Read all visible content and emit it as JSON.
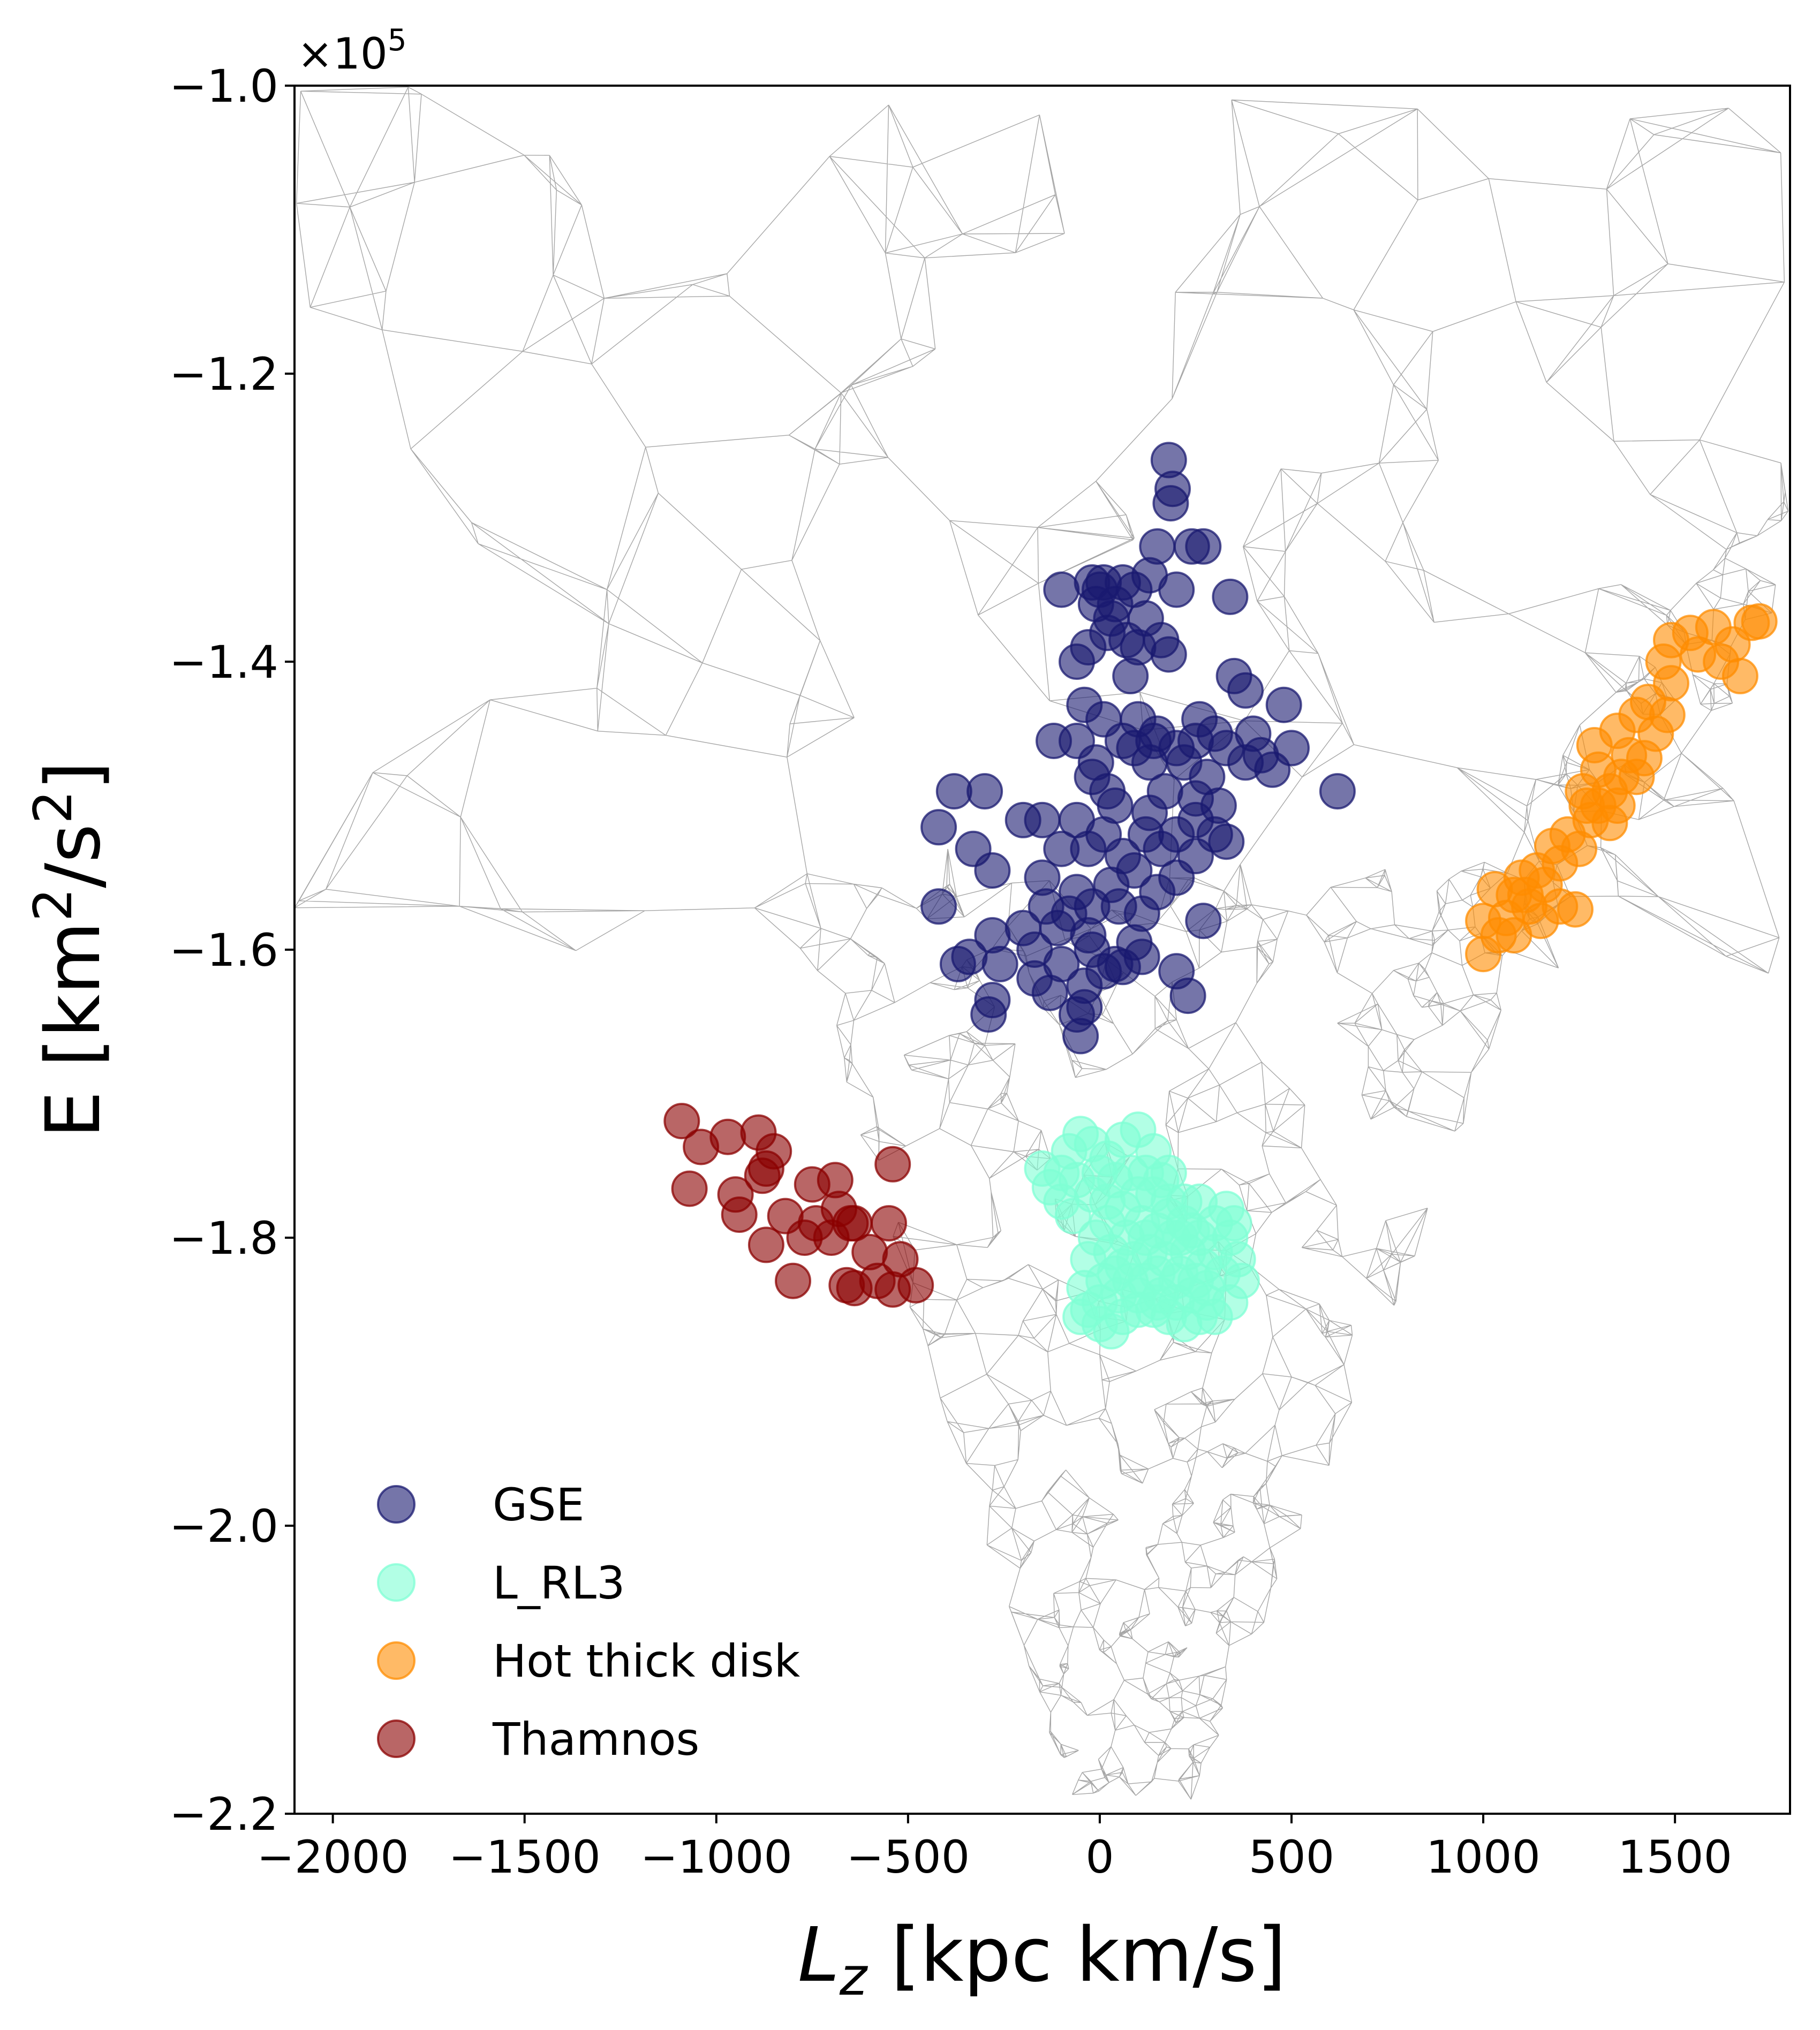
{
  "chart_data": {
    "type": "scatter",
    "title": "",
    "xlabel_main": "L",
    "xlabel_sub": "z",
    "xlabel_rest": " [kpc km/s]",
    "ylabel_main": "E [km",
    "ylabel_sup": "2",
    "ylabel_mid": "/s",
    "ylabel_sup2": "2",
    "ylabel_end": "]",
    "offset_text": "×10",
    "offset_exp": "5",
    "xlim": [
      -2100,
      1800
    ],
    "ylim": [
      -2.2,
      -1.0
    ],
    "xticks": [
      -2000,
      -1500,
      -1000,
      -500,
      0,
      500,
      1000,
      1500
    ],
    "xtick_labels": [
      "−2000",
      "−1500",
      "−1000",
      "−500",
      "0",
      "500",
      "1000",
      "1500"
    ],
    "yticks": [
      -2.2,
      -2.0,
      -1.8,
      -1.6,
      -1.4,
      -1.2,
      -1.0
    ],
    "ytick_labels": [
      "−2.2",
      "−2.0",
      "−1.8",
      "−1.6",
      "−1.4",
      "−1.2",
      "−1.0"
    ],
    "grid": false,
    "legend_position": "bottom-left",
    "series": [
      {
        "name": "GSE",
        "color": "#191970",
        "alpha": 0.6,
        "points": [
          [
            180,
            -1.26
          ],
          [
            190,
            -1.28
          ],
          [
            185,
            -1.29
          ],
          [
            270,
            -1.32
          ],
          [
            240,
            -1.32
          ],
          [
            150,
            -1.32
          ],
          [
            130,
            -1.34
          ],
          [
            -100,
            -1.35
          ],
          [
            -20,
            -1.345
          ],
          [
            10,
            -1.345
          ],
          [
            60,
            -1.345
          ],
          [
            90,
            -1.35
          ],
          [
            200,
            -1.35
          ],
          [
            340,
            -1.355
          ],
          [
            -10,
            -1.36
          ],
          [
            40,
            -1.36
          ],
          [
            120,
            -1.37
          ],
          [
            20,
            -1.38
          ],
          [
            70,
            -1.385
          ],
          [
            160,
            -1.385
          ],
          [
            -30,
            -1.39
          ],
          [
            100,
            -1.39
          ],
          [
            180,
            -1.395
          ],
          [
            -60,
            -1.4
          ],
          [
            350,
            -1.41
          ],
          [
            380,
            -1.42
          ],
          [
            480,
            -1.43
          ],
          [
            -40,
            -1.43
          ],
          [
            10,
            -1.44
          ],
          [
            100,
            -1.44
          ],
          [
            150,
            -1.45
          ],
          [
            200,
            -1.46
          ],
          [
            250,
            -1.455
          ],
          [
            300,
            -1.45
          ],
          [
            330,
            -1.46
          ],
          [
            420,
            -1.465
          ],
          [
            500,
            -1.46
          ],
          [
            -120,
            -1.455
          ],
          [
            -60,
            -1.455
          ],
          [
            60,
            -1.455
          ],
          [
            90,
            -1.46
          ],
          [
            130,
            -1.47
          ],
          [
            220,
            -1.47
          ],
          [
            280,
            -1.48
          ],
          [
            380,
            -1.47
          ],
          [
            450,
            -1.475
          ],
          [
            -20,
            -1.48
          ],
          [
            20,
            -1.49
          ],
          [
            170,
            -1.49
          ],
          [
            250,
            -1.495
          ],
          [
            310,
            -1.5
          ],
          [
            620,
            -1.49
          ],
          [
            -380,
            -1.49
          ],
          [
            -300,
            -1.49
          ],
          [
            -150,
            -1.51
          ],
          [
            -60,
            -1.51
          ],
          [
            10,
            -1.52
          ],
          [
            120,
            -1.52
          ],
          [
            200,
            -1.52
          ],
          [
            300,
            -1.52
          ],
          [
            -420,
            -1.515
          ],
          [
            -200,
            -1.51
          ],
          [
            -100,
            -1.53
          ],
          [
            -30,
            -1.53
          ],
          [
            60,
            -1.535
          ],
          [
            160,
            -1.53
          ],
          [
            250,
            -1.535
          ],
          [
            330,
            -1.525
          ],
          [
            -330,
            -1.53
          ],
          [
            -280,
            -1.545
          ],
          [
            -150,
            -1.55
          ],
          [
            -60,
            -1.56
          ],
          [
            30,
            -1.555
          ],
          [
            90,
            -1.545
          ],
          [
            200,
            -1.55
          ],
          [
            -20,
            -1.57
          ],
          [
            -80,
            -1.575
          ],
          [
            110,
            -1.575
          ],
          [
            -420,
            -1.57
          ],
          [
            -110,
            -1.585
          ],
          [
            -30,
            -1.59
          ],
          [
            90,
            -1.595
          ],
          [
            270,
            -1.58
          ],
          [
            -280,
            -1.59
          ],
          [
            -170,
            -1.6
          ],
          [
            -340,
            -1.605
          ],
          [
            -370,
            -1.61
          ],
          [
            -260,
            -1.61
          ],
          [
            -170,
            -1.62
          ],
          [
            -100,
            -1.61
          ],
          [
            10,
            -1.615
          ],
          [
            60,
            -1.612
          ],
          [
            110,
            -1.605
          ],
          [
            200,
            -1.615
          ],
          [
            -40,
            -1.625
          ],
          [
            -130,
            -1.63
          ],
          [
            -280,
            -1.635
          ],
          [
            -40,
            -1.64
          ],
          [
            -60,
            -1.645
          ],
          [
            -290,
            -1.645
          ],
          [
            230,
            -1.632
          ],
          [
            -50,
            -1.66
          ],
          [
            40,
            -1.61
          ],
          [
            0,
            -1.35
          ],
          [
            30,
            -1.37
          ],
          [
            80,
            -1.41
          ],
          [
            -10,
            -1.47
          ],
          [
            40,
            -1.5
          ],
          [
            130,
            -1.505
          ],
          [
            250,
            -1.51
          ],
          [
            150,
            -1.56
          ],
          [
            50,
            -1.57
          ],
          [
            -20,
            -1.6
          ],
          [
            -140,
            -1.57
          ],
          [
            -200,
            -1.585
          ],
          [
            140,
            -1.455
          ],
          [
            260,
            -1.44
          ],
          [
            400,
            -1.45
          ]
        ]
      },
      {
        "name": "L_RL3",
        "color": "#7fffd4",
        "alpha": 0.6,
        "points": [
          [
            -130,
            -1.765
          ],
          [
            -150,
            -1.752
          ],
          [
            -100,
            -1.775
          ],
          [
            -80,
            -1.74
          ],
          [
            -50,
            -1.728
          ],
          [
            -20,
            -1.735
          ],
          [
            20,
            -1.745
          ],
          [
            60,
            -1.732
          ],
          [
            100,
            -1.725
          ],
          [
            140,
            -1.74
          ],
          [
            180,
            -1.755
          ],
          [
            220,
            -1.775
          ],
          [
            260,
            -1.775
          ],
          [
            300,
            -1.79
          ],
          [
            340,
            -1.8
          ],
          [
            360,
            -1.815
          ],
          [
            370,
            -1.83
          ],
          [
            340,
            -1.845
          ],
          [
            300,
            -1.855
          ],
          [
            260,
            -1.855
          ],
          [
            220,
            -1.86
          ],
          [
            180,
            -1.855
          ],
          [
            140,
            -1.85
          ],
          [
            100,
            -1.85
          ],
          [
            60,
            -1.855
          ],
          [
            30,
            -1.865
          ],
          [
            0,
            -1.86
          ],
          [
            -30,
            -1.85
          ],
          [
            -40,
            -1.835
          ],
          [
            -30,
            -1.815
          ],
          [
            -10,
            -1.8
          ],
          [
            20,
            -1.79
          ],
          [
            60,
            -1.78
          ],
          [
            100,
            -1.77
          ],
          [
            140,
            -1.77
          ],
          [
            180,
            -1.775
          ],
          [
            220,
            -1.79
          ],
          [
            260,
            -1.8
          ],
          [
            300,
            -1.81
          ],
          [
            320,
            -1.825
          ],
          [
            280,
            -1.835
          ],
          [
            240,
            -1.84
          ],
          [
            200,
            -1.845
          ],
          [
            160,
            -1.84
          ],
          [
            120,
            -1.83
          ],
          [
            80,
            -1.83
          ],
          [
            40,
            -1.825
          ],
          [
            10,
            -1.83
          ],
          [
            30,
            -1.81
          ],
          [
            70,
            -1.8
          ],
          [
            110,
            -1.79
          ],
          [
            150,
            -1.795
          ],
          [
            190,
            -1.8
          ],
          [
            230,
            -1.81
          ],
          [
            270,
            -1.82
          ],
          [
            250,
            -1.83
          ],
          [
            210,
            -1.825
          ],
          [
            170,
            -1.815
          ],
          [
            130,
            -1.81
          ],
          [
            90,
            -1.815
          ],
          [
            50,
            -1.84
          ],
          [
            100,
            -1.84
          ],
          [
            150,
            -1.825
          ],
          [
            200,
            -1.83
          ],
          [
            240,
            -1.795
          ],
          [
            180,
            -1.785
          ],
          [
            120,
            -1.8
          ],
          [
            60,
            -1.82
          ],
          [
            -60,
            -1.76
          ],
          [
            -100,
            -1.755
          ],
          [
            0,
            -1.755
          ],
          [
            40,
            -1.76
          ],
          [
            80,
            -1.755
          ],
          [
            120,
            -1.755
          ],
          [
            160,
            -1.76
          ],
          [
            -20,
            -1.77
          ],
          [
            20,
            -1.775
          ],
          [
            -70,
            -1.785
          ],
          [
            330,
            -1.78
          ],
          [
            350,
            -1.79
          ],
          [
            0,
            -1.845
          ],
          [
            -50,
            -1.855
          ],
          [
            280,
            -1.845
          ],
          [
            210,
            -1.8
          ],
          [
            150,
            -1.845
          ]
        ]
      },
      {
        "name": "Hot thick disk",
        "color": "#ff8c00",
        "alpha": 0.6,
        "points": [
          [
            1720,
            -1.372
          ],
          [
            1700,
            -1.373
          ],
          [
            1600,
            -1.376
          ],
          [
            1540,
            -1.38
          ],
          [
            1650,
            -1.388
          ],
          [
            1560,
            -1.395
          ],
          [
            1490,
            -1.385
          ],
          [
            1470,
            -1.4
          ],
          [
            1620,
            -1.4
          ],
          [
            1670,
            -1.41
          ],
          [
            1490,
            -1.415
          ],
          [
            1430,
            -1.428
          ],
          [
            1400,
            -1.437
          ],
          [
            1480,
            -1.437
          ],
          [
            1350,
            -1.448
          ],
          [
            1450,
            -1.45
          ],
          [
            1290,
            -1.458
          ],
          [
            1380,
            -1.465
          ],
          [
            1420,
            -1.467
          ],
          [
            1300,
            -1.475
          ],
          [
            1360,
            -1.48
          ],
          [
            1400,
            -1.48
          ],
          [
            1330,
            -1.49
          ],
          [
            1260,
            -1.49
          ],
          [
            1300,
            -1.5
          ],
          [
            1350,
            -1.5
          ],
          [
            1280,
            -1.51
          ],
          [
            1330,
            -1.512
          ],
          [
            1220,
            -1.52
          ],
          [
            1250,
            -1.53
          ],
          [
            1180,
            -1.528
          ],
          [
            1200,
            -1.54
          ],
          [
            1140,
            -1.545
          ],
          [
            1100,
            -1.55
          ],
          [
            1160,
            -1.555
          ],
          [
            1030,
            -1.558
          ],
          [
            1080,
            -1.562
          ],
          [
            1120,
            -1.57
          ],
          [
            1200,
            -1.57
          ],
          [
            1060,
            -1.578
          ],
          [
            1000,
            -1.58
          ],
          [
            1150,
            -1.58
          ],
          [
            1240,
            -1.572
          ],
          [
            1040,
            -1.59
          ],
          [
            1080,
            -1.59
          ],
          [
            1000,
            -1.603
          ],
          [
            1110,
            -1.562
          ],
          [
            1270,
            -1.5
          ]
        ]
      },
      {
        "name": "Thamnos",
        "color": "#8b0000",
        "alpha": 0.6,
        "points": [
          [
            -1090,
            -1.719
          ],
          [
            -1040,
            -1.737
          ],
          [
            -970,
            -1.73
          ],
          [
            -890,
            -1.727
          ],
          [
            -850,
            -1.74
          ],
          [
            -1070,
            -1.766
          ],
          [
            -950,
            -1.77
          ],
          [
            -870,
            -1.752
          ],
          [
            -880,
            -1.757
          ],
          [
            -750,
            -1.763
          ],
          [
            -690,
            -1.76
          ],
          [
            -540,
            -1.749
          ],
          [
            -940,
            -1.784
          ],
          [
            -820,
            -1.785
          ],
          [
            -740,
            -1.79
          ],
          [
            -680,
            -1.78
          ],
          [
            -650,
            -1.79
          ],
          [
            -770,
            -1.8
          ],
          [
            -700,
            -1.8
          ],
          [
            -640,
            -1.79
          ],
          [
            -550,
            -1.79
          ],
          [
            -870,
            -1.805
          ],
          [
            -600,
            -1.81
          ],
          [
            -520,
            -1.815
          ],
          [
            -800,
            -1.83
          ],
          [
            -580,
            -1.83
          ],
          [
            -660,
            -1.833
          ],
          [
            -640,
            -1.835
          ],
          [
            -540,
            -1.836
          ],
          [
            -480,
            -1.833
          ]
        ]
      }
    ]
  }
}
